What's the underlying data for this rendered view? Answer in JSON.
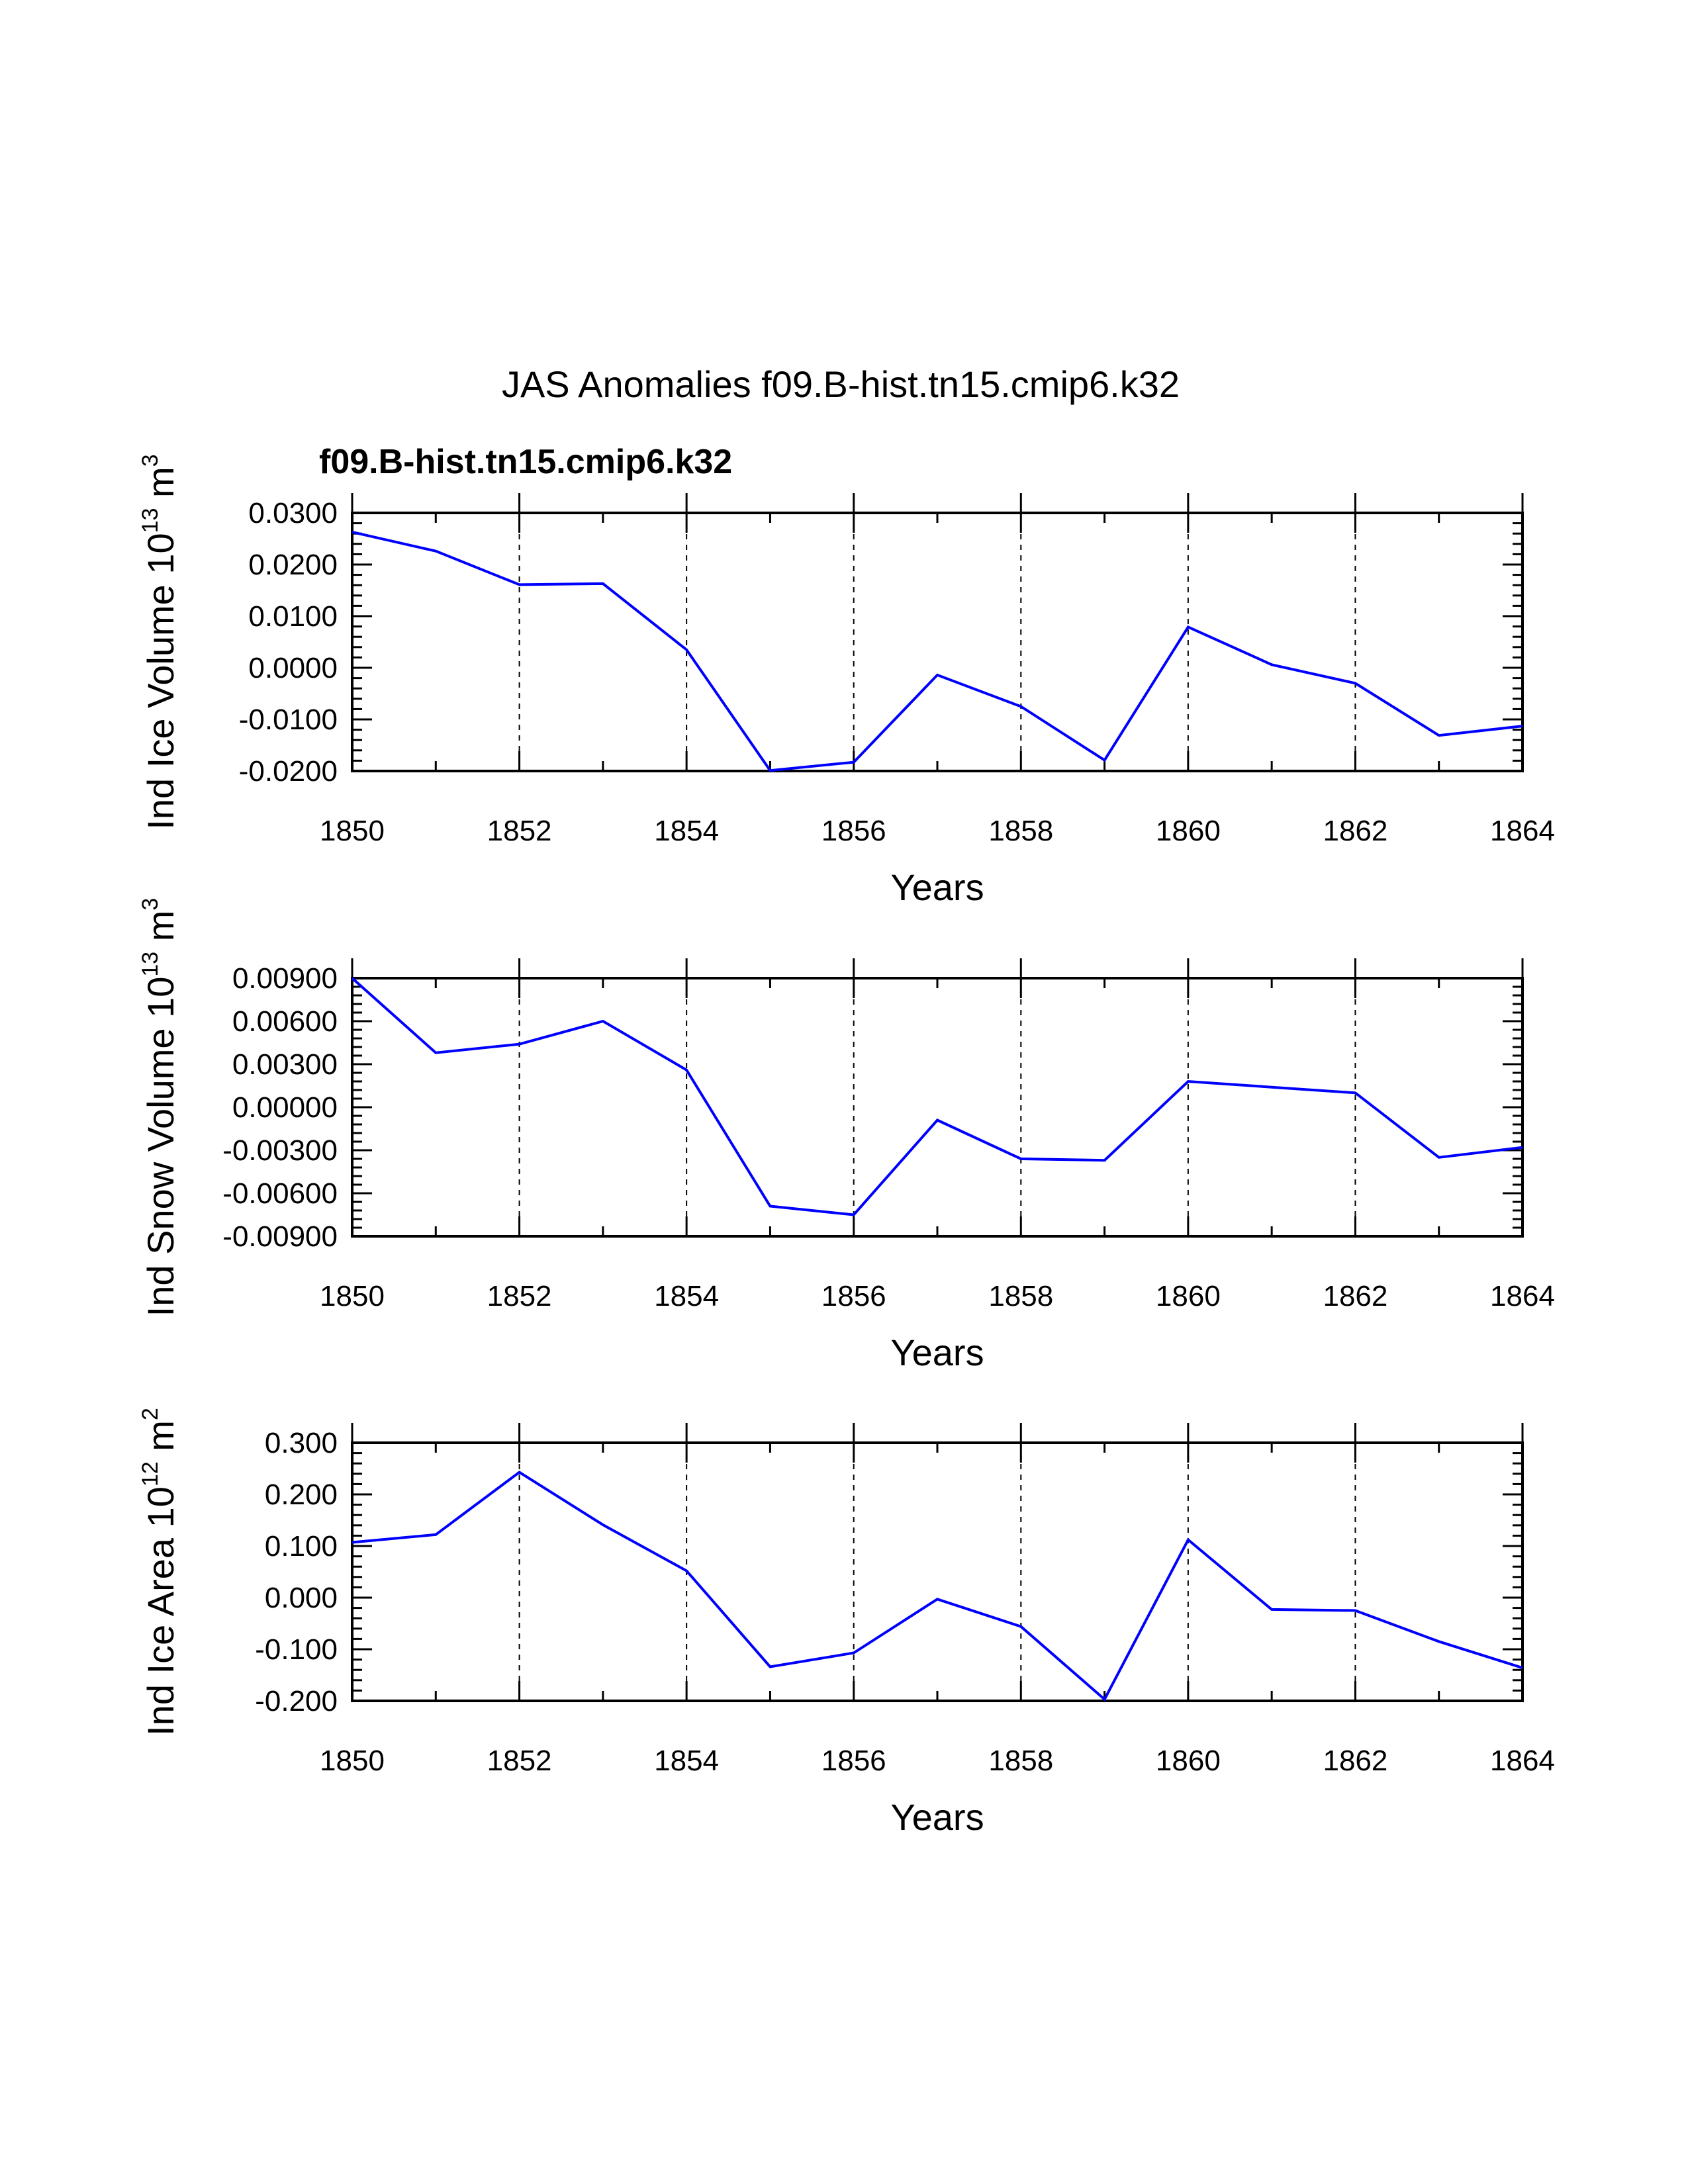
{
  "title": "JAS Anomalies f09.B-hist.tn15.cmip6.k32",
  "subtitle": "f09.B-hist.tn15.cmip6.k32",
  "colors": {
    "series": "#0000ff",
    "subtitle": "#0000ff",
    "axes": "#000000"
  },
  "chart_data": [
    {
      "type": "line",
      "ylabel_prefix": "Ind Ice Volume 10",
      "ylabel_exp": "13",
      "ylabel_unit": " m",
      "ylabel_unit_exp": "3",
      "xlabel": "Years",
      "xlim": [
        1850,
        1864
      ],
      "ylim": [
        -0.02,
        0.03
      ],
      "xticks": [
        1850,
        1852,
        1854,
        1856,
        1858,
        1860,
        1862,
        1864
      ],
      "xtick_labels": [
        "1850",
        "1852",
        "1854",
        "1856",
        "1858",
        "1860",
        "1862",
        "1864"
      ],
      "yticks": [
        0.03,
        0.02,
        0.01,
        0.0,
        -0.01,
        -0.02
      ],
      "ytick_labels": [
        "0.0300",
        "0.0200",
        "0.0100",
        "0.0000",
        "-0.0100",
        "-0.0200"
      ],
      "grid_x": [
        1852,
        1854,
        1856,
        1858,
        1860,
        1862
      ],
      "series": [
        {
          "name": "f09.B-hist.tn15.cmip6.k32",
          "x": [
            1850,
            1851,
            1852,
            1853,
            1854,
            1855,
            1856,
            1857,
            1858,
            1859,
            1860,
            1861,
            1862,
            1863,
            1864
          ],
          "values": [
            0.0263,
            0.0226,
            0.0161,
            0.0163,
            0.0035,
            -0.0199,
            -0.0183,
            -0.0014,
            -0.0075,
            -0.0179,
            0.0079,
            0.0006,
            -0.003,
            -0.0131,
            -0.0113
          ]
        }
      ]
    },
    {
      "type": "line",
      "ylabel_prefix": "Ind Snow Volume 10",
      "ylabel_exp": "13",
      "ylabel_unit": " m",
      "ylabel_unit_exp": "3",
      "xlabel": "Years",
      "xlim": [
        1850,
        1864
      ],
      "ylim": [
        -0.009,
        0.009
      ],
      "xticks": [
        1850,
        1852,
        1854,
        1856,
        1858,
        1860,
        1862,
        1864
      ],
      "xtick_labels": [
        "1850",
        "1852",
        "1854",
        "1856",
        "1858",
        "1860",
        "1862",
        "1864"
      ],
      "yticks": [
        0.009,
        0.006,
        0.003,
        0.0,
        -0.003,
        -0.006,
        -0.009
      ],
      "ytick_labels": [
        "0.00900",
        "0.00600",
        "0.00300",
        "0.00000",
        "-0.00300",
        "-0.00600",
        "-0.00900"
      ],
      "grid_x": [
        1852,
        1854,
        1856,
        1858,
        1860,
        1862
      ],
      "series": [
        {
          "name": "f09.B-hist.tn15.cmip6.k32",
          "x": [
            1850,
            1851,
            1852,
            1853,
            1854,
            1855,
            1856,
            1857,
            1858,
            1859,
            1860,
            1861,
            1862,
            1863,
            1864
          ],
          "values": [
            0.009,
            0.0038,
            0.0044,
            0.006,
            0.0026,
            -0.0069,
            -0.0075,
            -0.0009,
            -0.0036,
            -0.0037,
            0.0018,
            0.0014,
            0.001,
            -0.0035,
            -0.0028
          ]
        }
      ]
    },
    {
      "type": "line",
      "ylabel_prefix": "Ind Ice Area 10",
      "ylabel_exp": "12",
      "ylabel_unit": " m",
      "ylabel_unit_exp": "2",
      "xlabel": "Years",
      "xlim": [
        1850,
        1864
      ],
      "ylim": [
        -0.2,
        0.3
      ],
      "xticks": [
        1850,
        1852,
        1854,
        1856,
        1858,
        1860,
        1862,
        1864
      ],
      "xtick_labels": [
        "1850",
        "1852",
        "1854",
        "1856",
        "1858",
        "1860",
        "1862",
        "1864"
      ],
      "yticks": [
        0.3,
        0.2,
        0.1,
        0.0,
        -0.1,
        -0.2
      ],
      "ytick_labels": [
        "0.300",
        "0.200",
        "0.100",
        "0.000",
        "-0.100",
        "-0.200"
      ],
      "grid_x": [
        1852,
        1854,
        1856,
        1858,
        1860,
        1862
      ],
      "series": [
        {
          "name": "f09.B-hist.tn15.cmip6.k32",
          "x": [
            1850,
            1851,
            1852,
            1853,
            1854,
            1855,
            1856,
            1857,
            1858,
            1859,
            1860,
            1861,
            1862,
            1863,
            1864
          ],
          "values": [
            0.107,
            0.122,
            0.243,
            0.141,
            0.052,
            -0.134,
            -0.107,
            -0.003,
            -0.056,
            -0.197,
            0.112,
            -0.023,
            -0.025,
            -0.085,
            -0.136
          ]
        }
      ]
    }
  ]
}
